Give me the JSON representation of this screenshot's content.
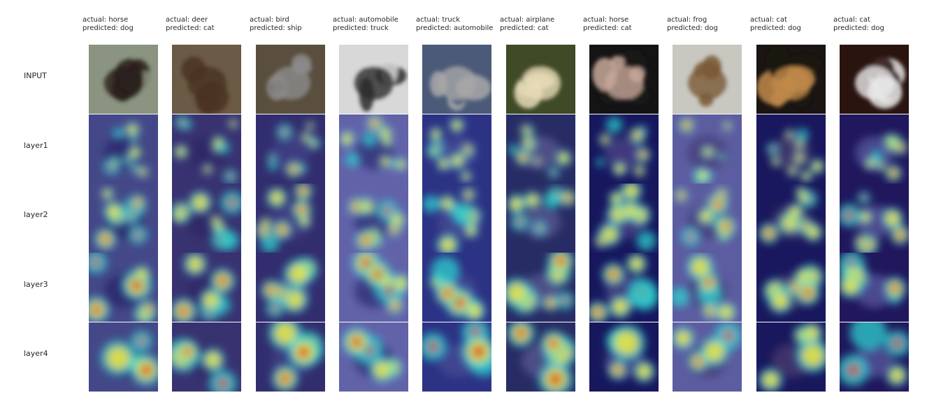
{
  "columns": [
    {
      "actual": "actual: horse",
      "predicted": "predicted: dog"
    },
    {
      "actual": "actual: deer",
      "predicted": "predicted: cat"
    },
    {
      "actual": "actual: bird",
      "predicted": "predicted: ship"
    },
    {
      "actual": "actual: automobile",
      "predicted": "predicted: truck"
    },
    {
      "actual": "actual: truck",
      "predicted": "predicted: automobile"
    },
    {
      "actual": "actual: airplane",
      "predicted": "predicted: cat"
    },
    {
      "actual": "actual: horse",
      "predicted": "predicted: cat"
    },
    {
      "actual": "actual: frog",
      "predicted": "predicted: dog"
    },
    {
      "actual": "actual: cat",
      "predicted": "predicted: dog"
    },
    {
      "actual": "actual: cat",
      "predicted": "predicted: dog"
    }
  ],
  "rows": [
    "INPUT",
    "layer1",
    "layer2",
    "layer3",
    "layer4"
  ],
  "colors": {
    "heat_low": "#1a1a8c",
    "heat_mid": "#2fd3d0",
    "heat_warm": "#f2e33a",
    "heat_hot": "#d9261c"
  },
  "inputs": [
    {
      "bg": "#8a9480",
      "fg": "#2a1f1a"
    },
    {
      "bg": "#6b5a45",
      "fg": "#4a3322"
    },
    {
      "bg": "#5a4e3e",
      "fg": "#8c8c8c"
    },
    {
      "bg": "#d8d8d8",
      "fg": "#2a2a2a"
    },
    {
      "bg": "#4a5a78",
      "fg": "#a8a8a8"
    },
    {
      "bg": "#3f4a26",
      "fg": "#e8dcb8"
    },
    {
      "bg": "#141414",
      "fg": "#c8a89a"
    },
    {
      "bg": "#c8c8c0",
      "fg": "#7a5a36"
    },
    {
      "bg": "#1a1412",
      "fg": "#c08a4a"
    },
    {
      "bg": "#2a1410",
      "fg": "#e8e8e8"
    }
  ]
}
